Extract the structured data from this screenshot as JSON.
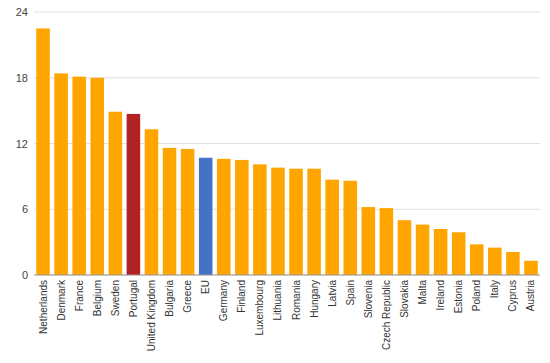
{
  "chart_data": {
    "type": "bar",
    "categories": [
      "Netherlands",
      "Denmark",
      "France",
      "Belgium",
      "Sweden",
      "Portugal",
      "United Kingdom",
      "Bulgaria",
      "Greece",
      "EU",
      "Germany",
      "Finland",
      "Luxembourg",
      "Lithuania",
      "Romania",
      "Hungary",
      "Latvia",
      "Spain",
      "Slovenia",
      "Czech Republic",
      "Slovakia",
      "Malta",
      "Ireland",
      "Estonia",
      "Poland",
      "Italy",
      "Cyprus",
      "Austria"
    ],
    "values": [
      22.5,
      18.4,
      18.1,
      18.0,
      14.9,
      14.7,
      13.3,
      11.6,
      11.5,
      10.7,
      10.6,
      10.5,
      10.1,
      9.8,
      9.7,
      9.7,
      8.7,
      8.6,
      6.2,
      6.1,
      5.0,
      4.6,
      4.2,
      3.9,
      2.8,
      2.5,
      2.1,
      1.3
    ],
    "colors": [
      "#FFA500",
      "#FFA500",
      "#FFA500",
      "#FFA500",
      "#FFA500",
      "#B22222",
      "#FFA500",
      "#FFA500",
      "#FFA500",
      "#4472C4",
      "#FFA500",
      "#FFA500",
      "#FFA500",
      "#FFA500",
      "#FFA500",
      "#FFA500",
      "#FFA500",
      "#FFA500",
      "#FFA500",
      "#FFA500",
      "#FFA500",
      "#FFA500",
      "#FFA500",
      "#FFA500",
      "#FFA500",
      "#FFA500",
      "#FFA500",
      "#FFA500"
    ],
    "ylim": [
      0,
      24
    ],
    "yticks": [
      0,
      6,
      12,
      18,
      24
    ],
    "grid": true
  }
}
